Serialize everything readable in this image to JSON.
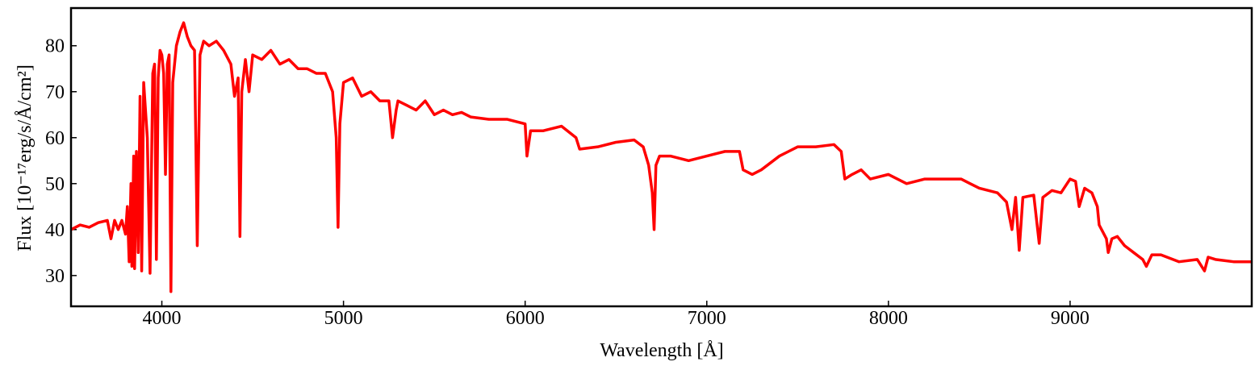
{
  "chart_data": {
    "type": "line",
    "xlabel": "Wavelength [Å]",
    "ylabel": "Flux [10⁻¹⁷erg/s/Å/cm²]",
    "xlim": [
      3500,
      10000
    ],
    "ylim": [
      23.3,
      88.2
    ],
    "xticks": [
      4000,
      5000,
      6000,
      7000,
      8000,
      9000
    ],
    "yticks": [
      30,
      40,
      50,
      60,
      70,
      80
    ],
    "grid": false,
    "x": [
      3500,
      3550,
      3600,
      3650,
      3700,
      3720,
      3740,
      3760,
      3780,
      3800,
      3810,
      3820,
      3830,
      3835,
      3845,
      3850,
      3860,
      3870,
      3880,
      3889,
      3900,
      3920,
      3935,
      3950,
      3960,
      3970,
      3980,
      3990,
      4000,
      4010,
      4020,
      4030,
      4040,
      4050,
      4060,
      4080,
      4100,
      4120,
      4140,
      4160,
      4180,
      4195,
      4210,
      4230,
      4260,
      4300,
      4340,
      4380,
      4400,
      4420,
      4430,
      4440,
      4460,
      4480,
      4500,
      4550,
      4600,
      4650,
      4700,
      4750,
      4800,
      4850,
      4900,
      4940,
      4960,
      4970,
      4980,
      5000,
      5050,
      5100,
      5150,
      5200,
      5250,
      5270,
      5290,
      5300,
      5350,
      5400,
      5450,
      5500,
      5550,
      5600,
      5650,
      5700,
      5800,
      5900,
      6000,
      6010,
      6030,
      6100,
      6200,
      6280,
      6300,
      6400,
      6500,
      6600,
      6650,
      6680,
      6700,
      6710,
      6720,
      6740,
      6800,
      6900,
      7000,
      7100,
      7180,
      7200,
      7250,
      7300,
      7400,
      7450,
      7500,
      7600,
      7700,
      7740,
      7760,
      7800,
      7850,
      7900,
      8000,
      8100,
      8200,
      8300,
      8400,
      8450,
      8500,
      8600,
      8650,
      8680,
      8700,
      8720,
      8740,
      8800,
      8830,
      8850,
      8900,
      8950,
      9000,
      9030,
      9050,
      9080,
      9120,
      9150,
      9160,
      9200,
      9210,
      9230,
      9260,
      9300,
      9350,
      9400,
      9420,
      9450,
      9500,
      9600,
      9700,
      9740,
      9760,
      9800,
      9900,
      10000
    ],
    "series": [
      {
        "name": "Flux",
        "color": "#ff0000",
        "values": [
          40,
          41,
          40.5,
          41.5,
          42,
          38,
          42,
          40,
          42,
          39,
          45,
          33,
          50,
          32,
          56,
          31.5,
          57,
          35,
          69,
          31,
          72,
          60,
          30.5,
          74,
          76,
          33.5,
          73,
          79,
          78,
          74,
          52,
          76,
          78,
          26.5,
          72,
          80,
          83,
          85,
          82,
          80,
          79,
          36.5,
          78,
          81,
          80,
          81,
          79,
          76,
          69,
          73,
          38.5,
          70,
          77,
          70,
          78,
          77,
          79,
          76,
          77,
          75,
          75,
          74,
          74,
          70,
          60,
          40.5,
          63,
          72,
          73,
          69,
          70,
          68,
          68,
          60,
          66,
          68,
          67,
          66,
          68,
          65,
          66,
          65,
          65.5,
          64.5,
          64,
          64,
          63,
          56,
          61.5,
          61.5,
          62.5,
          60,
          57.5,
          58,
          59,
          59.5,
          58,
          54,
          48,
          40,
          54,
          56,
          56,
          55,
          56,
          57,
          57,
          53,
          52,
          53,
          56,
          57,
          58,
          58,
          58.5,
          57,
          51,
          52,
          53,
          51,
          52,
          50,
          51,
          51,
          51,
          50,
          49,
          48,
          46,
          40,
          47,
          35.5,
          47,
          47.5,
          37,
          47,
          48.5,
          48,
          51,
          50.5,
          45,
          49,
          48,
          45,
          41,
          38,
          35,
          38,
          38.5,
          36.5,
          35,
          33.5,
          32,
          34.5,
          34.5,
          33,
          33.5,
          31,
          34,
          33.5,
          33,
          33
        ]
      }
    ]
  }
}
